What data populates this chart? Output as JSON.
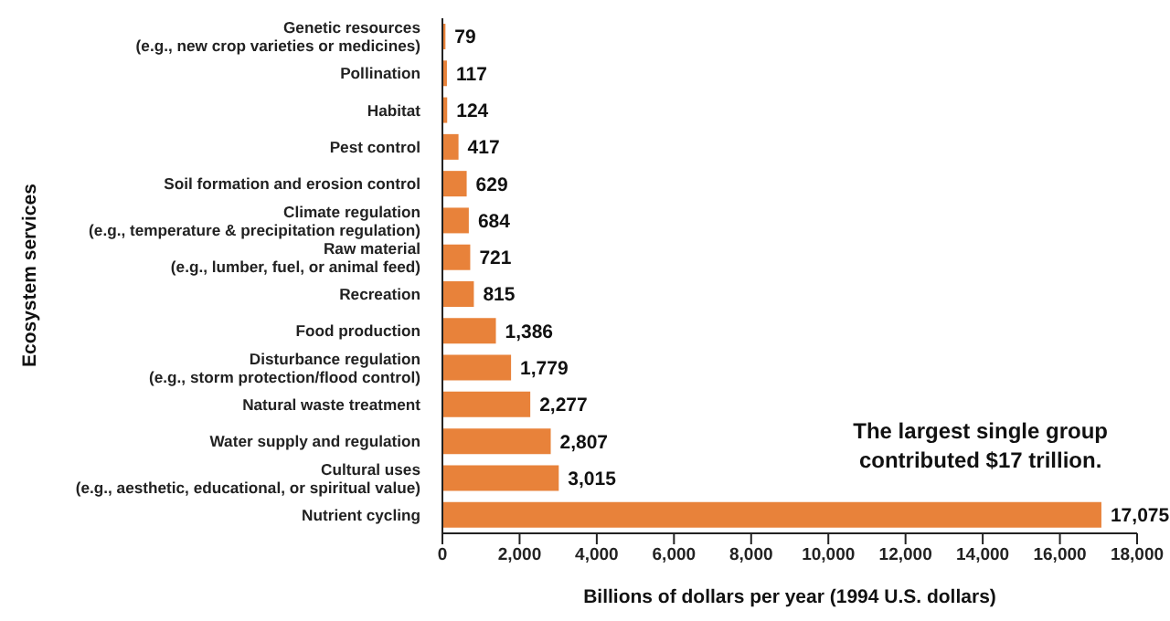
{
  "chart_data": {
    "type": "bar",
    "orientation": "horizontal",
    "xlabel": "Billions of dollars per year (1994 U.S. dollars)",
    "ylabel": "Ecosystem services",
    "categories": [
      "Genetic resources\n(e.g., new crop varieties or medicines)",
      "Pollination",
      "Habitat",
      "Pest control",
      "Soil formation and erosion control",
      "Climate regulation\n(e.g., temperature & precipitation regulation)",
      "Raw material\n(e.g., lumber, fuel, or animal feed)",
      "Recreation",
      "Food production",
      "Disturbance regulation\n(e.g., storm protection/flood control)",
      "Natural waste treatment",
      "Water supply and regulation",
      "Cultural uses\n(e.g., aesthetic, educational, or spiritual value)",
      "Nutrient cycling"
    ],
    "values": [
      79,
      117,
      124,
      417,
      629,
      684,
      721,
      815,
      1386,
      1779,
      2277,
      2807,
      3015,
      17075
    ],
    "value_labels": [
      "79",
      "117",
      "124",
      "417",
      "629",
      "684",
      "721",
      "815",
      "1,386",
      "1,779",
      "2,277",
      "2,807",
      "3,015",
      "17,075"
    ],
    "color": "#e8823a",
    "xlim": [
      0,
      18000
    ],
    "xticks": [
      0,
      {
        "value": 2000,
        "label": "2,000"
      },
      {
        "value": 4000,
        "label": "4,000"
      },
      {
        "value": 6000,
        "label": "6,000"
      },
      {
        "value": 8000,
        "label": "8,000"
      },
      {
        "value": 10000,
        "label": "10,000"
      },
      {
        "value": 12000,
        "label": "12,000"
      },
      {
        "value": 14000,
        "label": "14,000"
      },
      {
        "value": 16000,
        "label": "16,000"
      },
      {
        "value": 18000,
        "label": "18,000"
      }
    ],
    "annotations": [
      "The largest single group\ncontributed $17 trillion."
    ],
    "grid": false,
    "legend": false
  }
}
